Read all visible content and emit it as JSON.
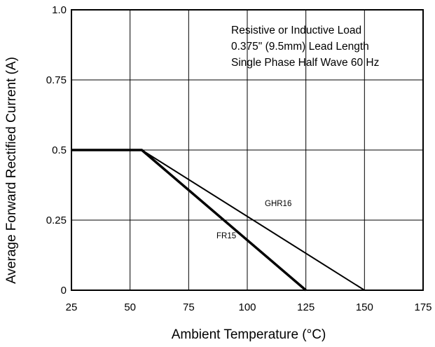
{
  "chart_data": {
    "type": "line",
    "title": "",
    "xlabel": "Ambient Temperature (°C)",
    "ylabel": "Average Forward Rectified Current (A)",
    "xlim": [
      25,
      175
    ],
    "ylim": [
      0,
      1.0
    ],
    "x_ticks": [
      25,
      50,
      75,
      100,
      125,
      150,
      175
    ],
    "x_tick_labels": [
      "25",
      "50",
      "75",
      "100",
      "125",
      "150",
      "175"
    ],
    "y_ticks": [
      0,
      0.25,
      0.5,
      0.75,
      1.0
    ],
    "y_tick_labels": [
      "0",
      "0.25",
      "0.5",
      "0.75",
      "1.0"
    ],
    "grid": true,
    "annotation_lines": [
      "Resistive or Inductive Load",
      "0.375\" (9.5mm) Lead Length",
      "Single Phase Half Wave 60 Hz"
    ],
    "series": [
      {
        "name": "GHR16",
        "x": [
          25,
          55,
          150
        ],
        "y": [
          0.5,
          0.5,
          0
        ],
        "color": "#000000",
        "line_weight": "thin"
      },
      {
        "name": "FR15",
        "x": [
          25,
          55,
          125
        ],
        "y": [
          0.5,
          0.5,
          0
        ],
        "color": "#000000",
        "line_weight": "thick"
      }
    ]
  }
}
